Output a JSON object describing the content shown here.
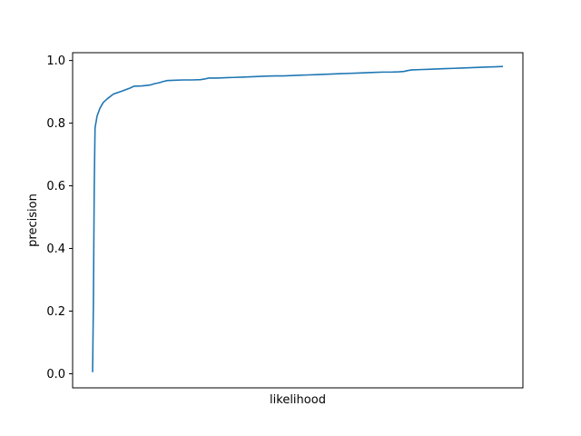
{
  "chart_data": {
    "type": "line",
    "xlabel": "likelihood",
    "ylabel": "precision",
    "ylim": [
      -0.045,
      1.025
    ],
    "y_ticks": [
      0.0,
      0.2,
      0.4,
      0.6,
      0.8,
      1.0
    ],
    "y_tick_labels": [
      "0.0",
      "0.2",
      "0.4",
      "0.6",
      "0.8",
      "1.0"
    ],
    "x_ticks_shown": false,
    "grid": false,
    "series": [
      {
        "color": "#1f77b4",
        "points": [
          [
            0.0,
            0.005
          ],
          [
            0.002,
            0.23
          ],
          [
            0.004,
            0.6
          ],
          [
            0.006,
            0.785
          ],
          [
            0.011,
            0.823
          ],
          [
            0.018,
            0.848
          ],
          [
            0.026,
            0.866
          ],
          [
            0.036,
            0.878
          ],
          [
            0.051,
            0.893
          ],
          [
            0.071,
            0.902
          ],
          [
            0.091,
            0.912
          ],
          [
            0.101,
            0.918
          ],
          [
            0.121,
            0.919
          ],
          [
            0.141,
            0.922
          ],
          [
            0.151,
            0.926
          ],
          [
            0.162,
            0.929
          ],
          [
            0.172,
            0.933
          ],
          [
            0.182,
            0.936
          ],
          [
            0.202,
            0.937
          ],
          [
            0.222,
            0.938
          ],
          [
            0.242,
            0.938
          ],
          [
            0.263,
            0.939
          ],
          [
            0.273,
            0.941
          ],
          [
            0.283,
            0.944
          ],
          [
            0.303,
            0.944
          ],
          [
            0.323,
            0.945
          ],
          [
            0.344,
            0.946
          ],
          [
            0.364,
            0.947
          ],
          [
            0.384,
            0.948
          ],
          [
            0.404,
            0.949
          ],
          [
            0.424,
            0.95
          ],
          [
            0.444,
            0.951
          ],
          [
            0.465,
            0.951
          ],
          [
            0.485,
            0.952
          ],
          [
            0.505,
            0.953
          ],
          [
            0.525,
            0.954
          ],
          [
            0.545,
            0.955
          ],
          [
            0.566,
            0.956
          ],
          [
            0.586,
            0.957
          ],
          [
            0.606,
            0.958
          ],
          [
            0.626,
            0.959
          ],
          [
            0.646,
            0.96
          ],
          [
            0.667,
            0.961
          ],
          [
            0.687,
            0.962
          ],
          [
            0.707,
            0.963
          ],
          [
            0.727,
            0.963
          ],
          [
            0.747,
            0.964
          ],
          [
            0.758,
            0.965
          ],
          [
            0.768,
            0.968
          ],
          [
            0.778,
            0.97
          ],
          [
            0.798,
            0.971
          ],
          [
            0.818,
            0.972
          ],
          [
            0.838,
            0.973
          ],
          [
            0.859,
            0.974
          ],
          [
            0.879,
            0.975
          ],
          [
            0.899,
            0.976
          ],
          [
            0.919,
            0.977
          ],
          [
            0.939,
            0.978
          ],
          [
            0.96,
            0.979
          ],
          [
            0.98,
            0.98
          ],
          [
            1.0,
            0.981
          ]
        ]
      }
    ]
  }
}
